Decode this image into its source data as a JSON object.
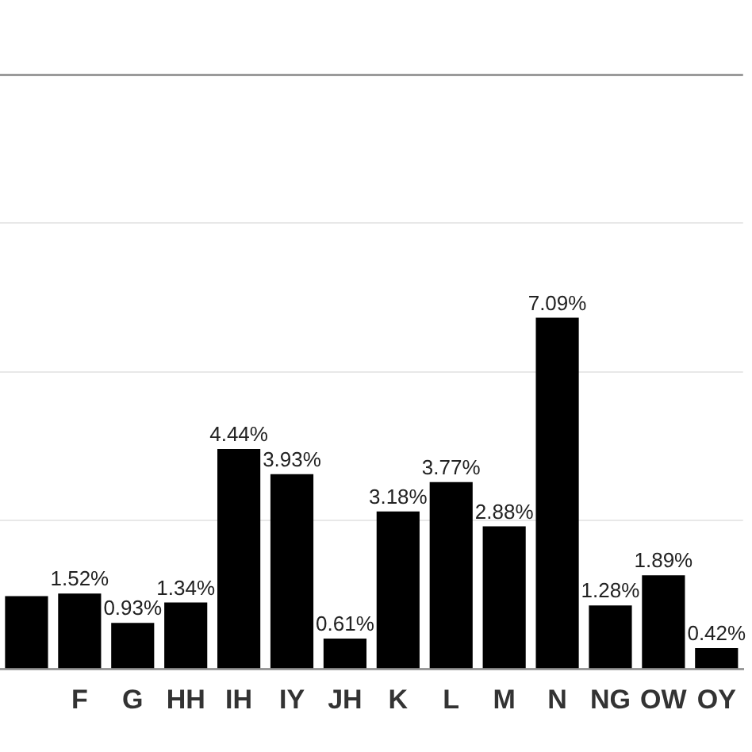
{
  "chart_data": {
    "type": "bar",
    "categories": [
      null,
      "F",
      "G",
      "HH",
      "IH",
      "IY",
      "JH",
      "K",
      "L",
      "M",
      "N",
      "NG",
      "OW",
      "OY"
    ],
    "values": [
      1.47,
      1.52,
      0.93,
      1.34,
      4.44,
      3.93,
      0.61,
      3.18,
      3.77,
      2.88,
      7.09,
      1.28,
      1.89,
      0.42
    ],
    "value_labels": [
      null,
      "1.52%",
      "0.93%",
      "1.34%",
      "4.44%",
      "3.93%",
      "0.61%",
      "3.18%",
      "3.77%",
      "2.88%",
      "7.09%",
      "1.28%",
      "1.89%",
      "0.42%"
    ],
    "color": "#000000",
    "ylim": [
      0,
      12
    ],
    "yticks": [
      0,
      3,
      6,
      9,
      12
    ],
    "grid": "y",
    "tick_labels": "x",
    "legend": false
  }
}
